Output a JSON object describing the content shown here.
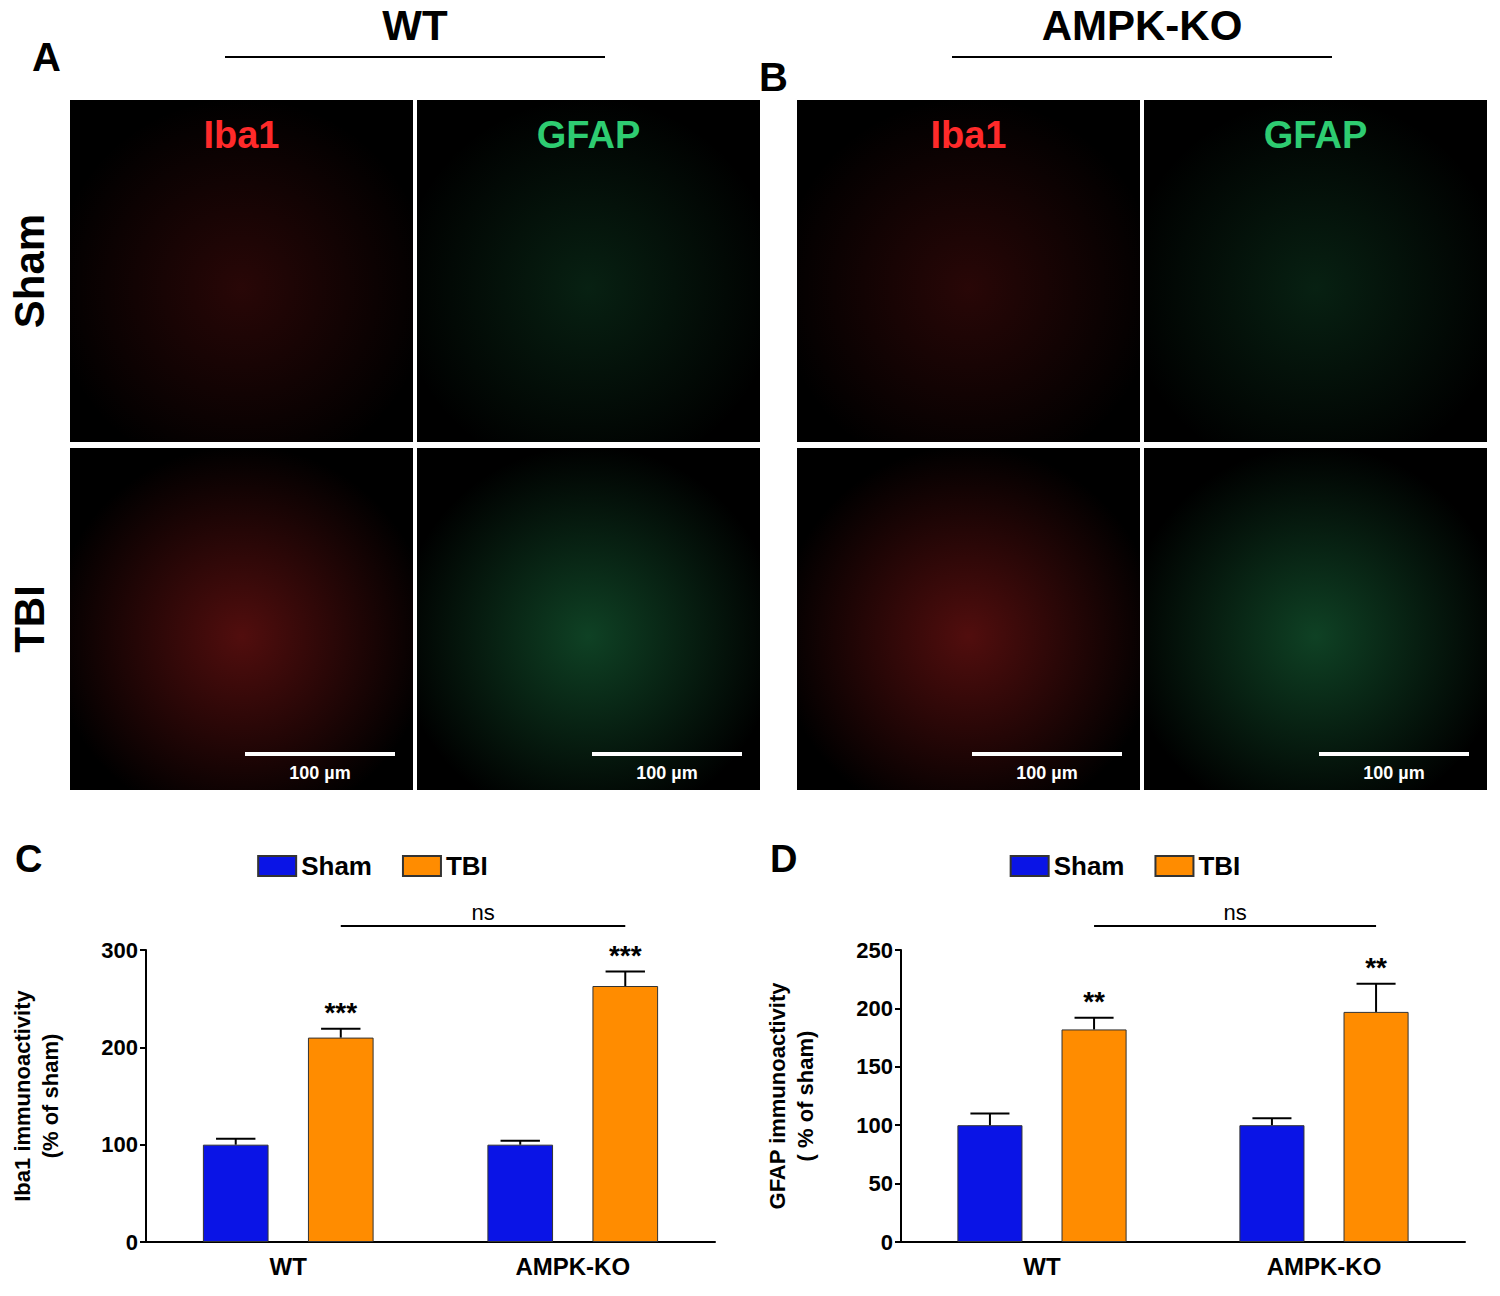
{
  "figure": {
    "panels": [
      {
        "letter": "A",
        "genotype": "WT",
        "rows": [
          "Sham",
          "TBI"
        ],
        "stains": [
          {
            "name": "Iba1",
            "color": "#ff2a2a"
          },
          {
            "name": "GFAP",
            "color": "#2ecc71"
          }
        ],
        "scale_bar": "100 µm",
        "scale_bar_row": "TBI"
      },
      {
        "letter": "B",
        "genotype": "AMPK-KO",
        "rows": [
          "Sham",
          "TBI"
        ],
        "stains": [
          {
            "name": "Iba1",
            "color": "#ff2a2a"
          },
          {
            "name": "GFAP",
            "color": "#2ecc71"
          }
        ],
        "scale_bar": "100 µm",
        "scale_bar_row": "TBI"
      }
    ]
  },
  "chart_data": [
    {
      "type": "bar",
      "title": "C",
      "y_label": "Iba1 immunoactivity (% of sham)",
      "categories": [
        "WT",
        "AMPK-KO"
      ],
      "series": [
        {
          "name": "Sham",
          "color": "#0a14e6",
          "values": [
            100,
            100
          ],
          "errors": [
            6,
            4
          ]
        },
        {
          "name": "TBI",
          "color": "#ff8c00",
          "values": [
            210,
            263
          ],
          "errors": [
            9,
            15
          ],
          "marks": [
            "***",
            "***"
          ]
        }
      ],
      "comparisons": [
        {
          "label": "ns",
          "series": "TBI",
          "between": [
            "WT",
            "AMPK-KO"
          ]
        }
      ],
      "ylim": [
        0,
        300
      ],
      "yticks": [
        0,
        100,
        200,
        300
      ],
      "grid": false,
      "legend": "top"
    },
    {
      "type": "bar",
      "title": "D",
      "y_label": "GFAP immunoactivity ( % of sham)",
      "categories": [
        "WT",
        "AMPK-KO"
      ],
      "series": [
        {
          "name": "Sham",
          "color": "#0a14e6",
          "values": [
            100,
            100
          ],
          "errors": [
            10,
            6
          ]
        },
        {
          "name": "TBI",
          "color": "#ff8c00",
          "values": [
            182,
            197
          ],
          "errors": [
            10,
            24
          ],
          "marks": [
            "**",
            "**"
          ]
        }
      ],
      "comparisons": [
        {
          "label": "ns",
          "series": "TBI",
          "between": [
            "WT",
            "AMPK-KO"
          ]
        }
      ],
      "ylim": [
        0,
        250
      ],
      "yticks": [
        0,
        50,
        100,
        150,
        200,
        250
      ],
      "grid": false,
      "legend": "top"
    }
  ]
}
